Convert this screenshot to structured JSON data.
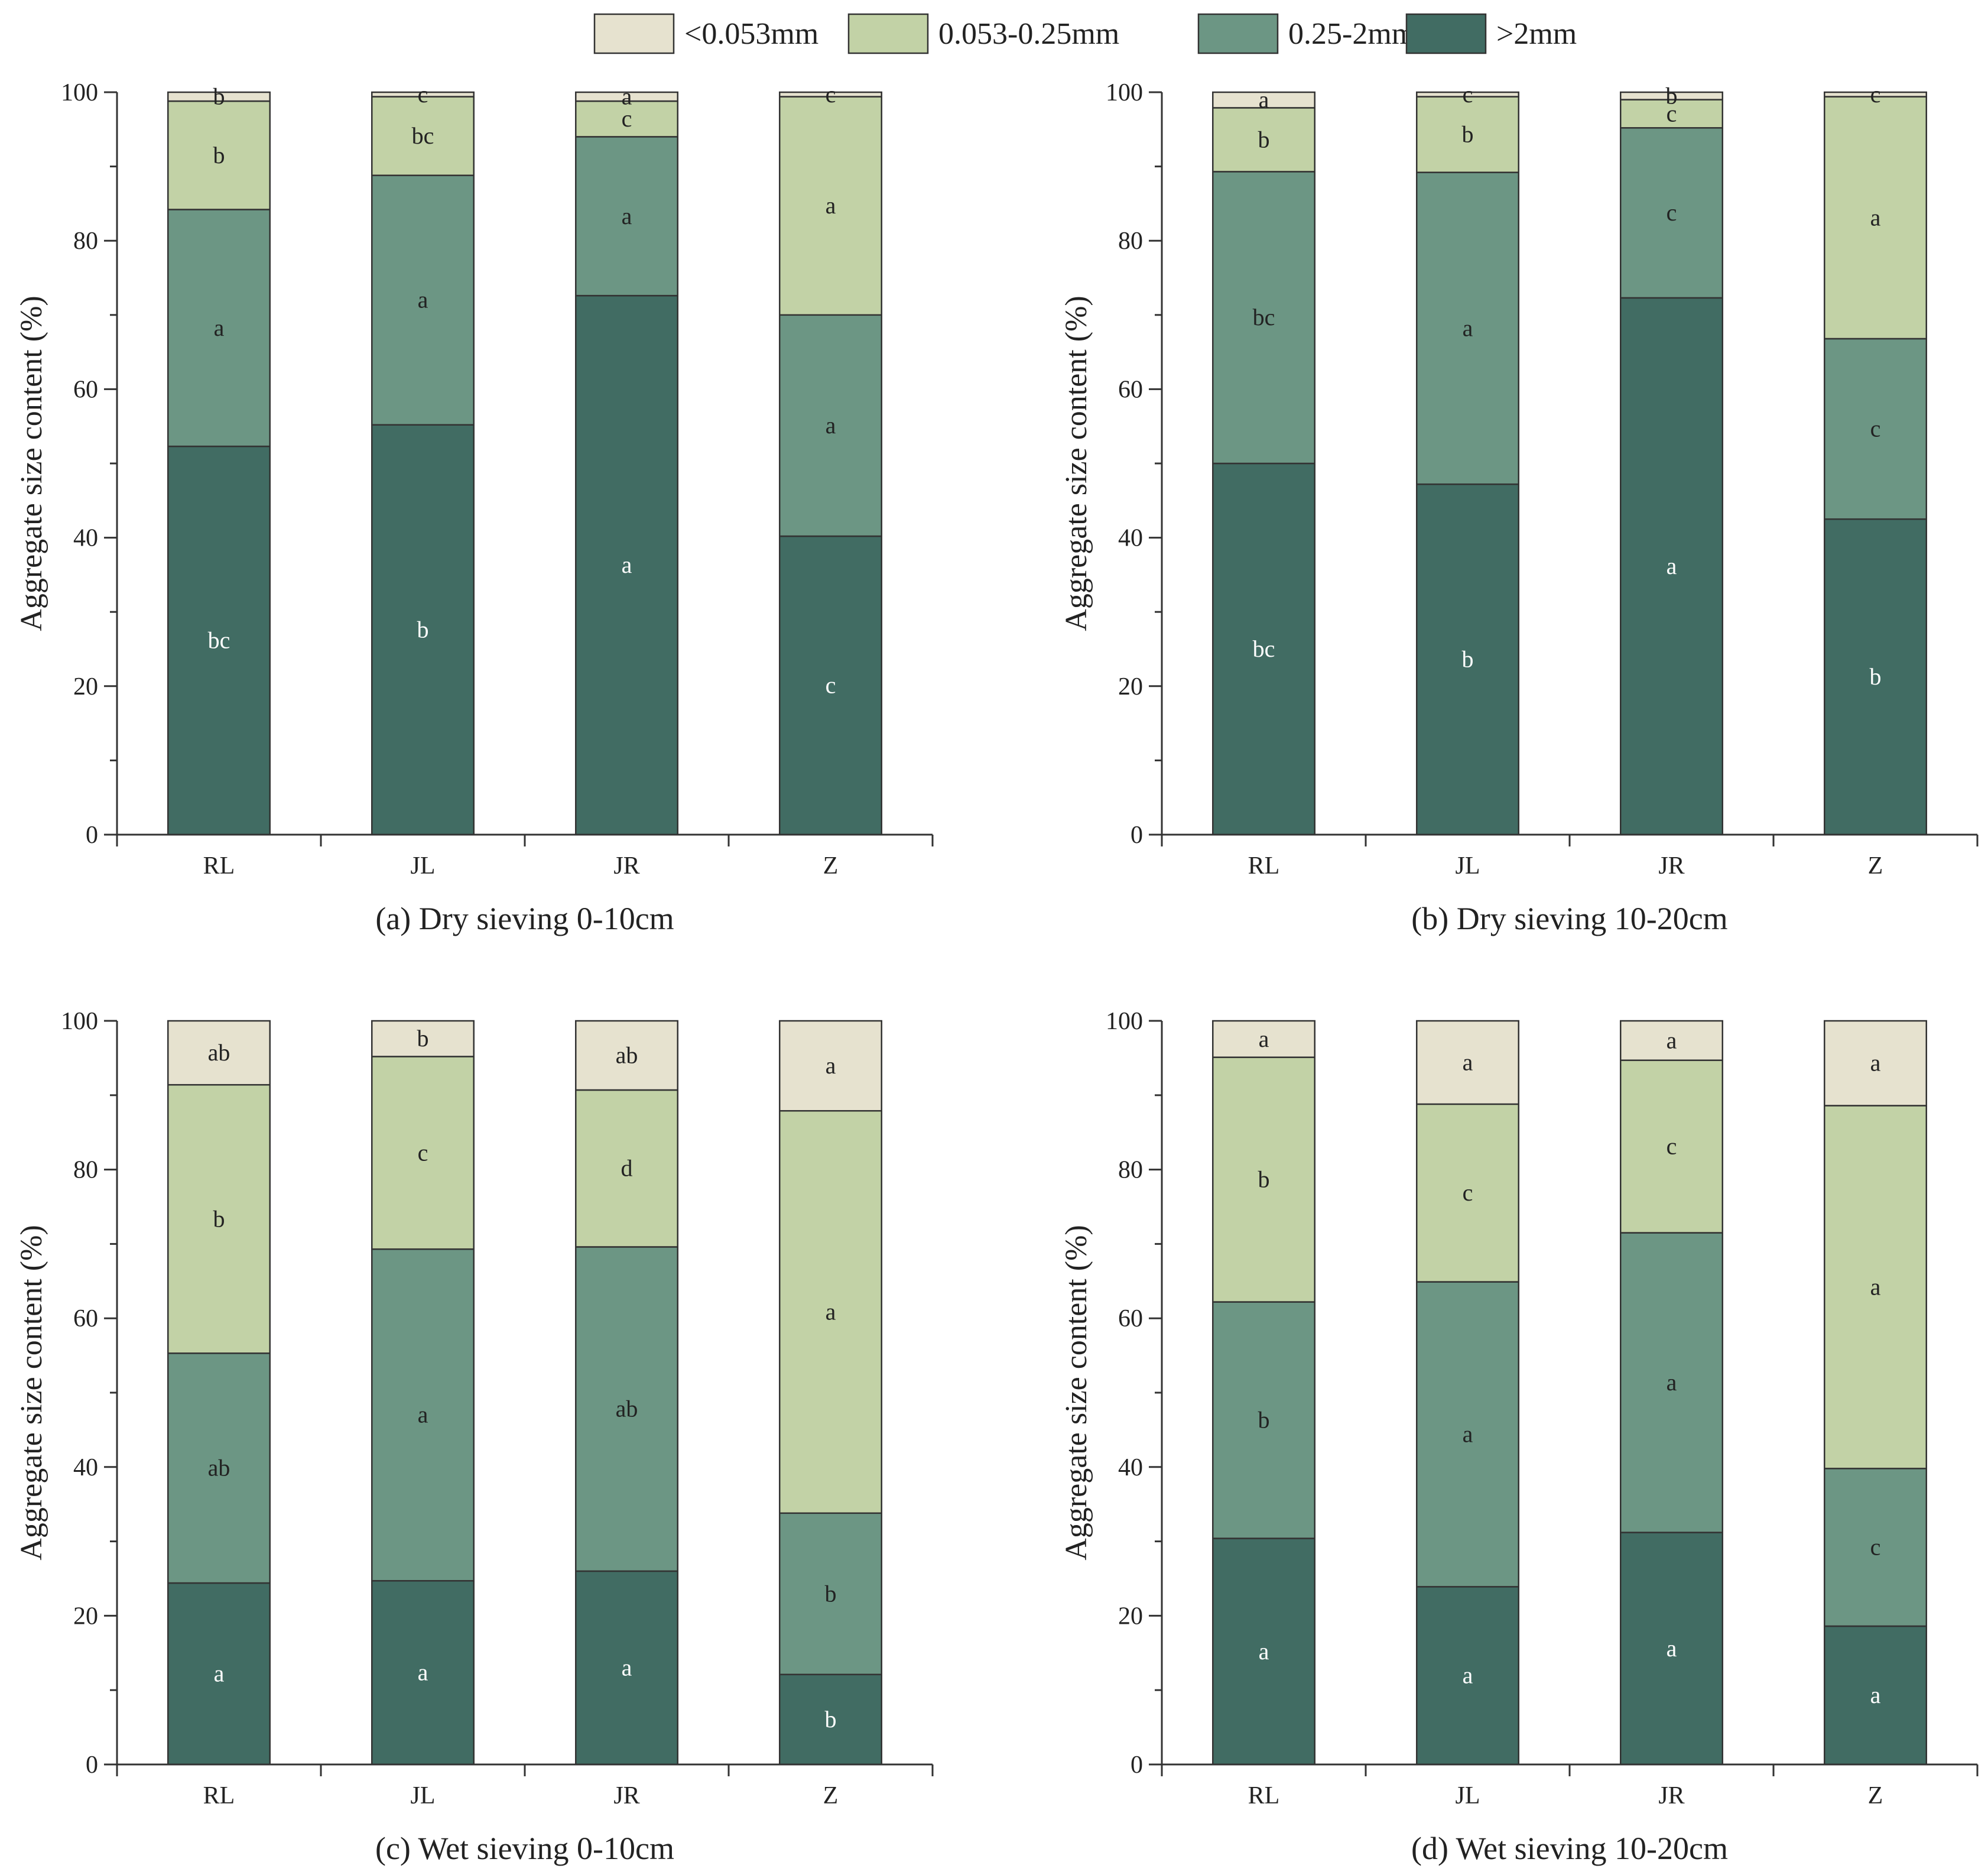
{
  "legend": {
    "items": [
      {
        "label": "<0.053mm",
        "color": "#e6e2cf"
      },
      {
        "label": "0.053-0.25mm",
        "color": "#c2d2a6"
      },
      {
        "label": "0.25-2mm",
        "color": "#6c9684"
      },
      {
        "label": ">2mm",
        "color": "#416c63"
      }
    ]
  },
  "chart_data": [
    {
      "type": "bar",
      "stacked": true,
      "title": "(a) Dry sieving 0-10cm",
      "xlabel": "",
      "ylabel": "Aggregate size content (%)",
      "ylim": [
        0,
        100
      ],
      "yticks": [
        "0",
        "20",
        "40",
        "60",
        "80",
        "100"
      ],
      "categories": [
        "RL",
        "JL",
        "JR",
        "Z"
      ],
      "series": [
        {
          "name": ">2mm",
          "values": [
            52.3,
            55.2,
            72.6,
            40.2
          ],
          "labels": [
            "bc",
            "b",
            "a",
            "c"
          ]
        },
        {
          "name": "0.25-2mm",
          "values": [
            31.9,
            33.6,
            21.4,
            29.8
          ],
          "labels": [
            "a",
            "a",
            "a",
            "a"
          ]
        },
        {
          "name": "0.053-0.25mm",
          "values": [
            14.6,
            10.6,
            4.8,
            29.4
          ],
          "labels": [
            "b",
            "bc",
            "c",
            "a"
          ]
        },
        {
          "name": "<0.053mm",
          "values": [
            1.2,
            0.6,
            1.2,
            0.6
          ],
          "labels": [
            "b",
            "c",
            "a",
            "c"
          ]
        }
      ]
    },
    {
      "type": "bar",
      "stacked": true,
      "title": "(b) Dry sieving 10-20cm",
      "xlabel": "",
      "ylabel": "Aggregate size content (%)",
      "ylim": [
        0,
        100
      ],
      "yticks": [
        "0",
        "20",
        "40",
        "60",
        "80",
        "100"
      ],
      "categories": [
        "RL",
        "JL",
        "JR",
        "Z"
      ],
      "series": [
        {
          "name": ">2mm",
          "values": [
            50.0,
            47.2,
            72.3,
            42.5
          ],
          "labels": [
            "bc",
            "b",
            "a",
            "b"
          ]
        },
        {
          "name": "0.25-2mm",
          "values": [
            39.3,
            42.0,
            22.9,
            24.3
          ],
          "labels": [
            "bc",
            "a",
            "c",
            "c"
          ]
        },
        {
          "name": "0.053-0.25mm",
          "values": [
            8.6,
            10.2,
            3.8,
            32.6
          ],
          "labels": [
            "b",
            "b",
            "c",
            "a"
          ]
        },
        {
          "name": "<0.053mm",
          "values": [
            2.1,
            0.6,
            1.0,
            0.6
          ],
          "labels": [
            "a",
            "c",
            "b",
            "c"
          ]
        }
      ]
    },
    {
      "type": "bar",
      "stacked": true,
      "title": "(c) Wet sieving 0-10cm",
      "xlabel": "",
      "ylabel": "Aggregate size content (%)",
      "ylim": [
        0,
        100
      ],
      "yticks": [
        "0",
        "20",
        "40",
        "60",
        "80",
        "100"
      ],
      "categories": [
        "RL",
        "JL",
        "JR",
        "Z"
      ],
      "series": [
        {
          "name": ">2mm",
          "values": [
            24.4,
            24.7,
            26.0,
            12.1
          ],
          "labels": [
            "a",
            "a",
            "a",
            "b"
          ]
        },
        {
          "name": "0.25-2mm",
          "values": [
            30.9,
            44.6,
            43.6,
            21.7
          ],
          "labels": [
            "ab",
            "a",
            "ab",
            "b"
          ]
        },
        {
          "name": "0.053-0.25mm",
          "values": [
            36.1,
            25.9,
            21.1,
            54.1
          ],
          "labels": [
            "b",
            "c",
            "d",
            "a"
          ]
        },
        {
          "name": "<0.053mm",
          "values": [
            8.6,
            4.8,
            9.3,
            12.1
          ],
          "labels": [
            "ab",
            "b",
            "ab",
            "a"
          ]
        }
      ]
    },
    {
      "type": "bar",
      "stacked": true,
      "title": "(d) Wet sieving 10-20cm",
      "xlabel": "",
      "ylabel": "Aggregate size content (%)",
      "ylim": [
        0,
        100
      ],
      "yticks": [
        "0",
        "20",
        "40",
        "60",
        "80",
        "100"
      ],
      "categories": [
        "RL",
        "JL",
        "JR",
        "Z"
      ],
      "series": [
        {
          "name": ">2mm",
          "values": [
            30.4,
            23.9,
            31.2,
            18.6
          ],
          "labels": [
            "a",
            "a",
            "a",
            "a"
          ]
        },
        {
          "name": "0.25-2mm",
          "values": [
            31.8,
            41.0,
            40.3,
            21.2
          ],
          "labels": [
            "b",
            "a",
            "a",
            "c"
          ]
        },
        {
          "name": "0.053-0.25mm",
          "values": [
            32.9,
            23.9,
            23.2,
            48.8
          ],
          "labels": [
            "b",
            "c",
            "c",
            "a"
          ]
        },
        {
          "name": "<0.053mm",
          "values": [
            4.9,
            11.2,
            5.3,
            11.4
          ],
          "labels": [
            "a",
            "a",
            "a",
            "a"
          ]
        }
      ]
    }
  ]
}
